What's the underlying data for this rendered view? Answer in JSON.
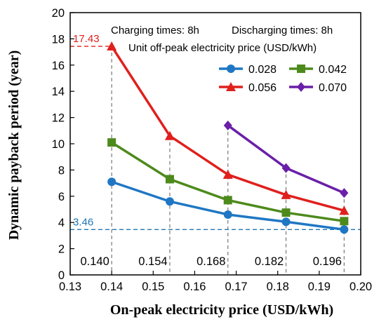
{
  "chart_data": {
    "type": "line",
    "xlabel": "On-peak electricity price (USD/kWh)",
    "ylabel": "Dynamic payback period (year)",
    "xlim": [
      0.13,
      0.2
    ],
    "ylim": [
      0,
      20
    ],
    "xticks": [
      "0.13",
      "0.14",
      "0.15",
      "0.16",
      "0.17",
      "0.18",
      "0.19",
      "0.20"
    ],
    "yticks": [
      "0",
      "2",
      "4",
      "6",
      "8",
      "10",
      "12",
      "14",
      "16",
      "18",
      "20"
    ],
    "annotations": {
      "charging": "Charging times: 8h",
      "discharging": "Discharging times: 8h",
      "legend_title": "Unit off-peak electricity price (USD/kWh)"
    },
    "reference_lines": [
      {
        "label": "17.43",
        "y": 17.43,
        "color": "#e0201d"
      },
      {
        "label": "3.46",
        "y": 3.46,
        "color": "#1f77b4"
      }
    ],
    "vertical_markers": [
      {
        "x": 0.14,
        "label": "0.140"
      },
      {
        "x": 0.154,
        "label": "0.154"
      },
      {
        "x": 0.168,
        "label": "0.168"
      },
      {
        "x": 0.182,
        "label": "0.182"
      },
      {
        "x": 0.196,
        "label": "0.196"
      }
    ],
    "legend_position": "top-right",
    "series": [
      {
        "name": "0.028",
        "color": "#1f77c4",
        "marker": "circle",
        "x": [
          0.14,
          0.154,
          0.168,
          0.182,
          0.196
        ],
        "y": [
          7.1,
          5.6,
          4.6,
          4.05,
          3.46
        ]
      },
      {
        "name": "0.042",
        "color": "#4d8a1c",
        "marker": "square",
        "x": [
          0.14,
          0.154,
          0.168,
          0.182,
          0.196
        ],
        "y": [
          10.1,
          7.3,
          5.7,
          4.75,
          4.1
        ]
      },
      {
        "name": "0.056",
        "color": "#e0201d",
        "marker": "triangle",
        "x": [
          0.14,
          0.154,
          0.168,
          0.182,
          0.196
        ],
        "y": [
          17.43,
          10.6,
          7.65,
          6.1,
          4.9
        ]
      },
      {
        "name": "0.070",
        "color": "#6a1fa8",
        "marker": "diamond",
        "x": [
          0.168,
          0.182,
          0.196
        ],
        "y": [
          11.4,
          8.15,
          6.25
        ]
      }
    ]
  }
}
